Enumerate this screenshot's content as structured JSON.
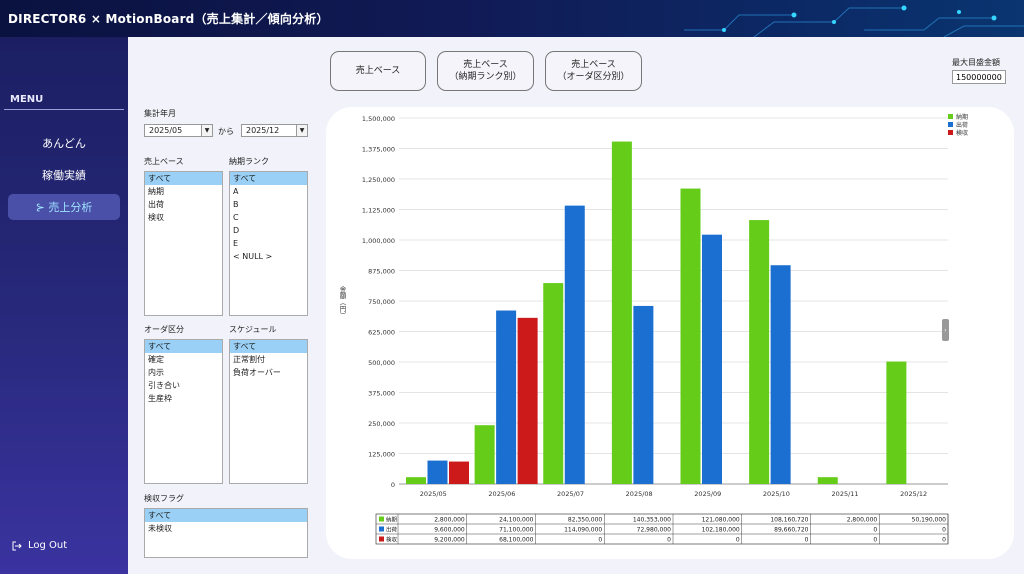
{
  "app": {
    "title": "DIRECTOR6 × MotionBoard（売上集計／傾向分析）"
  },
  "sidebar": {
    "menu_label": "MENU",
    "items": [
      {
        "label": "あんどん",
        "active": false
      },
      {
        "label": "稼働実績",
        "active": false
      },
      {
        "label": "⊱ 売上分析",
        "active": true
      }
    ],
    "logout": "Log Out"
  },
  "tabs": [
    {
      "line1": "売上ベース",
      "line2": ""
    },
    {
      "line1": "売上ベース",
      "line2": "（納期ランク別）"
    },
    {
      "line1": "売上ベース",
      "line2": "（オーダ区分別）"
    }
  ],
  "max_amount": {
    "label": "最大目盛金額",
    "value": "150000000"
  },
  "filters": {
    "period_label": "集計年月",
    "from": "2025/05",
    "to": "2025/12",
    "kara": "から",
    "sales_base": {
      "label": "売上ベース",
      "options": [
        "すべて",
        "納期",
        "出荷",
        "検収"
      ],
      "selected": 0
    },
    "delivery_rank": {
      "label": "納期ランク",
      "options": [
        "すべて",
        "A",
        "B",
        "C",
        "D",
        "E",
        "< NULL >"
      ],
      "selected": 0
    },
    "order_type": {
      "label": "オーダ区分",
      "options": [
        "すべて",
        "確定",
        "内示",
        "引き合い",
        "生産枠"
      ],
      "selected": 0
    },
    "schedule": {
      "label": "スケジュール",
      "options": [
        "すべて",
        "正常割付",
        "負荷オーバー"
      ],
      "selected": 0
    },
    "acceptance_flag": {
      "label": "検収フラグ",
      "options": [
        "すべて",
        "未検収"
      ],
      "selected": 0
    }
  },
  "chart_data": {
    "type": "bar",
    "ylabel": "金額（円）",
    "ylim": [
      0,
      1500000
    ],
    "yticks": [
      "1,500,000",
      "1,375,000",
      "1,250,000",
      "1,125,000",
      "1,000,000",
      "875,000",
      "750,000",
      "625,000",
      "500,000",
      "375,000",
      "250,000",
      "125,000",
      "0"
    ],
    "categories": [
      "2025/05",
      "2025/06",
      "2025/07",
      "2025/08",
      "2025/09",
      "2025/10",
      "2025/11",
      "2025/12"
    ],
    "legend_position": "top-right",
    "series": [
      {
        "name": "納期",
        "color": "#66cc1a",
        "values": [
          28000,
          241000,
          823500,
          1403530,
          1210800,
          1081607,
          28000,
          501900
        ],
        "labels": [
          "2,800,000",
          "24,100,000",
          "82,350,000",
          "140,353,000",
          "121,080,000",
          "108,160,720",
          "2,800,000",
          "50,190,000"
        ]
      },
      {
        "name": "出荷",
        "color": "#1a6fd0",
        "values": [
          96000,
          711000,
          1140900,
          729800,
          1021800,
          896607,
          0,
          0
        ],
        "labels": [
          "9,600,000",
          "71,100,000",
          "114,090,000",
          "72,980,000",
          "102,180,000",
          "89,660,720",
          "0",
          "0"
        ]
      },
      {
        "name": "検収",
        "color": "#cc1a1a",
        "values": [
          92000,
          681000,
          0,
          0,
          0,
          0,
          0,
          0
        ],
        "labels": [
          "9,200,000",
          "68,100,000",
          "0",
          "0",
          "0",
          "0",
          "0",
          "0"
        ]
      }
    ]
  }
}
